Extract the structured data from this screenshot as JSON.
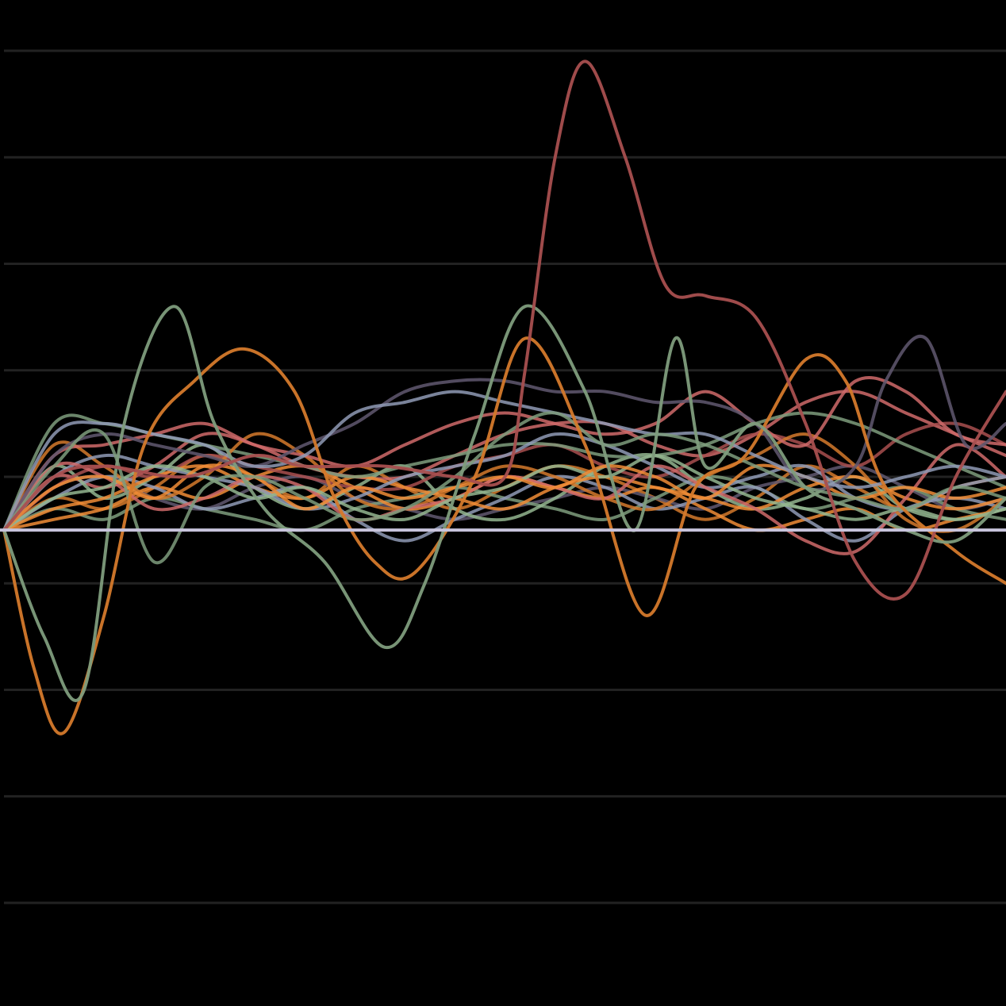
{
  "chart_data": {
    "type": "line",
    "title": "",
    "xlabel": "",
    "ylabel": "",
    "xlim": [
      0,
      100
    ],
    "ylim": [
      -60,
      50
    ],
    "gridlines_y": [
      45,
      35,
      25,
      15,
      5,
      -5,
      -15,
      -25,
      -35
    ],
    "baseline_y": 0,
    "grid": true,
    "legend": "none",
    "background_color": "#000000",
    "grid_color": "#222222",
    "baseline_color": "#c8c4dc",
    "series_colors": [
      "#a84f4f",
      "#7e9c7c",
      "#d4792b",
      "#8f9ab5",
      "#605870",
      "#cf6a6a",
      "#f08c36",
      "#93b58f"
    ],
    "series": [
      {
        "color": "#a84f4f",
        "x": [
          0,
          5,
          10,
          18,
          25,
          30,
          38,
          45,
          50,
          52,
          55,
          58,
          62,
          66,
          70,
          75,
          80,
          85,
          90,
          95,
          100
        ],
        "y": [
          0,
          5,
          6,
          5,
          7,
          6,
          6,
          5,
          5,
          15,
          35,
          44,
          35,
          23,
          22,
          20,
          10,
          -3,
          -6,
          5,
          13
        ]
      },
      {
        "color": "#7e9c7c",
        "x": [
          0,
          4,
          8,
          12,
          17,
          21,
          26,
          32,
          38,
          42,
          47,
          52,
          58,
          63,
          67,
          70,
          75,
          80,
          85,
          90,
          95,
          100
        ],
        "y": [
          0,
          -10,
          -15,
          10,
          21,
          10,
          2,
          -3,
          -11,
          -5,
          9,
          21,
          13,
          0,
          18,
          6,
          10,
          4,
          2,
          0,
          -1,
          3
        ]
      },
      {
        "color": "#d4792b",
        "x": [
          0,
          3,
          6,
          10,
          14,
          19,
          24,
          29,
          33,
          37,
          41,
          47,
          52,
          58,
          64,
          69,
          74,
          80,
          84,
          88,
          95,
          100
        ],
        "y": [
          0,
          -13,
          -19,
          -8,
          8,
          14,
          17,
          13,
          3,
          -3,
          -4,
          5,
          18,
          8,
          -8,
          4,
          7,
          16,
          14,
          4,
          -2,
          -5
        ]
      },
      {
        "color": "#7e9c7c",
        "x": [
          0,
          5,
          10,
          15,
          20,
          25,
          30,
          35,
          40,
          45,
          50,
          55,
          60,
          65,
          70,
          75,
          80,
          85,
          90,
          95,
          100
        ],
        "y": [
          0,
          6,
          9,
          -3,
          4,
          5,
          3,
          1,
          2,
          5,
          9,
          11,
          8,
          9,
          8,
          6,
          4,
          3,
          2,
          4,
          3
        ]
      },
      {
        "color": "#8f9ab5",
        "x": [
          0,
          5,
          10,
          15,
          20,
          25,
          30,
          35,
          40,
          45,
          50,
          55,
          60,
          65,
          70,
          75,
          80,
          85,
          90,
          95,
          100
        ],
        "y": [
          0,
          9,
          10,
          9,
          8,
          6,
          7,
          11,
          12,
          13,
          12,
          11,
          10,
          9,
          9,
          7,
          5,
          4,
          5,
          6,
          5
        ]
      },
      {
        "color": "#605870",
        "x": [
          0,
          5,
          10,
          15,
          20,
          25,
          30,
          35,
          40,
          45,
          50,
          55,
          60,
          65,
          70,
          75,
          80,
          85,
          88,
          92,
          96,
          100
        ],
        "y": [
          0,
          7,
          9,
          8,
          7,
          6,
          8,
          10,
          13,
          14,
          14,
          13,
          13,
          12,
          12,
          10,
          4,
          6,
          14,
          18,
          8,
          10
        ]
      },
      {
        "color": "#cf6a6a",
        "x": [
          0,
          5,
          10,
          15,
          20,
          25,
          30,
          35,
          40,
          45,
          50,
          55,
          60,
          65,
          70,
          75,
          80,
          85,
          90,
          95,
          100
        ],
        "y": [
          0,
          7,
          8,
          9,
          10,
          8,
          7,
          6,
          8,
          10,
          11,
          10,
          9,
          10,
          13,
          10,
          8,
          14,
          13,
          9,
          8
        ]
      },
      {
        "color": "#f08c36",
        "x": [
          0,
          5,
          10,
          15,
          20,
          25,
          30,
          35,
          40,
          45,
          50,
          55,
          60,
          65,
          70,
          75,
          80,
          85,
          90,
          95,
          100
        ],
        "y": [
          0,
          4,
          5,
          3,
          6,
          5,
          2,
          4,
          3,
          4,
          5,
          4,
          6,
          5,
          3,
          6,
          5,
          3,
          4,
          3,
          4
        ]
      },
      {
        "color": "#93b58f",
        "x": [
          0,
          5,
          10,
          15,
          20,
          25,
          30,
          35,
          40,
          45,
          50,
          55,
          60,
          65,
          70,
          75,
          80,
          85,
          90,
          95,
          100
        ],
        "y": [
          0,
          3,
          4,
          6,
          5,
          3,
          4,
          2,
          1,
          3,
          4,
          6,
          5,
          7,
          5,
          3,
          2,
          1,
          2,
          1,
          2
        ]
      },
      {
        "color": "#cf6a6a",
        "x": [
          0,
          5,
          10,
          15,
          20,
          25,
          30,
          35,
          40,
          45,
          50,
          55,
          60,
          65,
          70,
          75,
          80,
          85,
          90,
          95,
          100
        ],
        "y": [
          0,
          6,
          5,
          2,
          3,
          5,
          4,
          1,
          2,
          3,
          5,
          4,
          3,
          6,
          4,
          2,
          -1,
          -2,
          3,
          8,
          5
        ]
      },
      {
        "color": "#8f9ab5",
        "x": [
          0,
          5,
          10,
          15,
          20,
          25,
          30,
          35,
          40,
          45,
          50,
          55,
          60,
          65,
          70,
          75,
          80,
          85,
          90,
          95,
          100
        ],
        "y": [
          0,
          5,
          7,
          6,
          5,
          4,
          2,
          3,
          5,
          6,
          7,
          9,
          8,
          6,
          4,
          5,
          6,
          3,
          2,
          4,
          5
        ]
      },
      {
        "color": "#d4792b",
        "x": [
          0,
          5,
          10,
          15,
          20,
          25,
          30,
          35,
          40,
          45,
          50,
          55,
          60,
          65,
          70,
          75,
          80,
          85,
          90,
          95,
          100
        ],
        "y": [
          0,
          8,
          6,
          3,
          5,
          9,
          7,
          3,
          2,
          4,
          6,
          5,
          3,
          2,
          5,
          7,
          9,
          6,
          1,
          0,
          3
        ]
      },
      {
        "color": "#7e9c7c",
        "x": [
          0,
          5,
          10,
          15,
          20,
          25,
          30,
          35,
          40,
          45,
          50,
          55,
          60,
          65,
          70,
          75,
          80,
          85,
          90,
          95,
          100
        ],
        "y": [
          0,
          10,
          10,
          9,
          8,
          7,
          6,
          5,
          6,
          7,
          8,
          8,
          7,
          7,
          8,
          10,
          11,
          10,
          8,
          6,
          4
        ]
      },
      {
        "color": "#f08c36",
        "x": [
          0,
          5,
          10,
          15,
          20,
          25,
          30,
          35,
          40,
          45,
          50,
          55,
          60,
          65,
          70,
          75,
          80,
          85,
          90,
          95,
          100
        ],
        "y": [
          0,
          2,
          3,
          5,
          6,
          4,
          3,
          5,
          4,
          3,
          2,
          4,
          5,
          4,
          3,
          2,
          4,
          5,
          3,
          2,
          3
        ]
      },
      {
        "color": "#a84f4f",
        "x": [
          0,
          5,
          10,
          15,
          20,
          25,
          30,
          35,
          40,
          45,
          50,
          55,
          60,
          65,
          70,
          75,
          80,
          85,
          90,
          95,
          100
        ],
        "y": [
          0,
          4,
          6,
          5,
          7,
          6,
          5,
          4,
          4,
          6,
          7,
          8,
          6,
          5,
          7,
          9,
          8,
          6,
          9,
          10,
          8
        ]
      },
      {
        "color": "#93b58f",
        "x": [
          0,
          5,
          10,
          15,
          20,
          25,
          30,
          35,
          40,
          45,
          50,
          55,
          60,
          65,
          70,
          75,
          80,
          85,
          90,
          95,
          100
        ],
        "y": [
          0,
          6,
          3,
          5,
          8,
          4,
          2,
          4,
          6,
          2,
          1,
          3,
          6,
          7,
          4,
          2,
          3,
          5,
          2,
          1,
          2
        ]
      },
      {
        "color": "#8f9ab5",
        "x": [
          0,
          5,
          10,
          15,
          20,
          25,
          30,
          35,
          40,
          45,
          50,
          55,
          60,
          65,
          70,
          75,
          80,
          85,
          90,
          95,
          100
        ],
        "y": [
          0,
          3,
          5,
          4,
          2,
          3,
          4,
          1,
          -1,
          1,
          3,
          5,
          4,
          2,
          3,
          4,
          1,
          -1,
          2,
          3,
          2
        ]
      },
      {
        "color": "#cf6a6a",
        "x": [
          0,
          5,
          10,
          15,
          20,
          25,
          30,
          35,
          40,
          45,
          50,
          55,
          60,
          65,
          70,
          75,
          80,
          85,
          90,
          95,
          100
        ],
        "y": [
          0,
          5,
          4,
          6,
          9,
          8,
          6,
          5,
          5,
          7,
          9,
          10,
          10,
          8,
          7,
          9,
          12,
          13,
          11,
          9,
          7
        ]
      },
      {
        "color": "#f08c36",
        "x": [
          0,
          5,
          10,
          15,
          20,
          25,
          30,
          35,
          40,
          45,
          50,
          55,
          60,
          65,
          70,
          75,
          80,
          85,
          90,
          95,
          100
        ],
        "y": [
          0,
          1,
          2,
          4,
          3,
          5,
          6,
          4,
          2,
          3,
          5,
          4,
          3,
          4,
          2,
          0,
          1,
          2,
          0,
          1,
          2
        ]
      },
      {
        "color": "#7e9c7c",
        "x": [
          0,
          5,
          10,
          15,
          20,
          25,
          30,
          35,
          40,
          45,
          50,
          55,
          60,
          65,
          70,
          75,
          80,
          85,
          90,
          95,
          100
        ],
        "y": [
          0,
          2,
          1,
          3,
          2,
          1,
          0,
          2,
          3,
          4,
          3,
          2,
          1,
          3,
          5,
          4,
          2,
          3,
          4,
          2,
          1
        ]
      },
      {
        "color": "#605870",
        "x": [
          0,
          5,
          10,
          15,
          20,
          25,
          30,
          35,
          40,
          45,
          50,
          55,
          60,
          65,
          70,
          75,
          80,
          85,
          90,
          95,
          100
        ],
        "y": [
          0,
          4,
          5,
          3,
          2,
          4,
          5,
          3,
          2,
          1,
          2,
          3,
          4,
          3,
          2,
          4,
          5,
          6,
          4,
          2,
          3
        ]
      },
      {
        "color": "#d4792b",
        "x": [
          0,
          5,
          10,
          15,
          20,
          25,
          30,
          35,
          40,
          45,
          50,
          55,
          60,
          65,
          70,
          75,
          80,
          85,
          90,
          95,
          100
        ],
        "y": [
          0,
          3,
          2,
          4,
          7,
          5,
          3,
          6,
          4,
          2,
          4,
          6,
          5,
          3,
          1,
          3,
          6,
          4,
          2,
          4,
          5
        ]
      }
    ]
  }
}
